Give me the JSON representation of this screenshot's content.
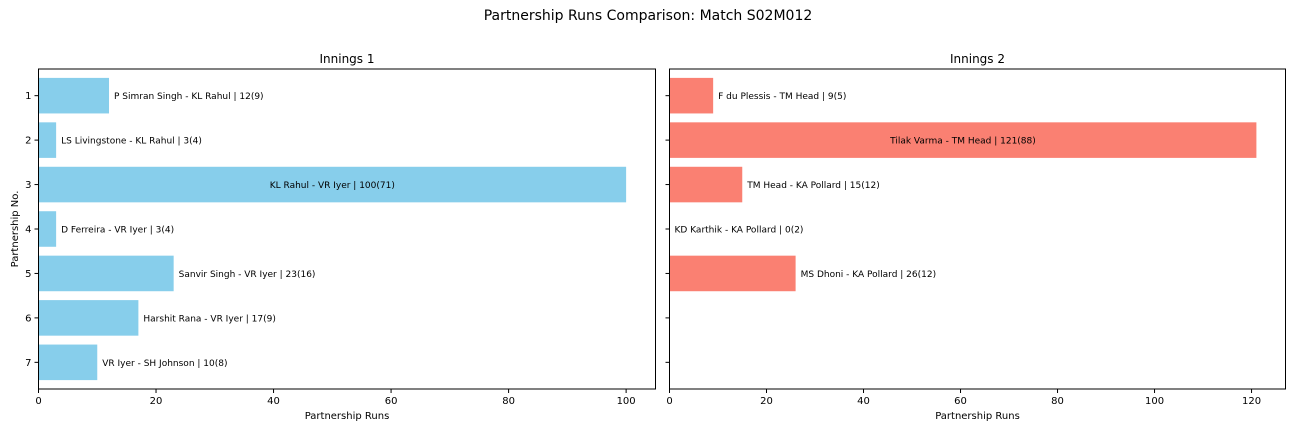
{
  "figure": {
    "title": "Partnership Runs Comparison: Match S02M012"
  },
  "chart_data": [
    {
      "type": "bar",
      "orientation": "horizontal",
      "title": "Innings 1",
      "xlabel": "Partnership Runs",
      "ylabel": "Partnership No.",
      "xlim": [
        0,
        105
      ],
      "xticks": [
        0,
        20,
        40,
        60,
        80,
        100
      ],
      "categories": [
        "1",
        "2",
        "3",
        "4",
        "5",
        "6",
        "7"
      ],
      "values": [
        12,
        3,
        100,
        3,
        23,
        17,
        10
      ],
      "labels": [
        "P Simran Singh - KL Rahul | 12(9)",
        "LS Livingstone - KL Rahul | 3(4)",
        "KL Rahul - VR Iyer | 100(71)",
        "D Ferreira - VR Iyer | 3(4)",
        "Sanvir Singh - VR Iyer | 23(16)",
        "Harshit Rana - VR Iyer | 17(9)",
        "VR Iyer - SH Johnson | 10(8)"
      ],
      "color": "#87CEEB",
      "grid": false
    },
    {
      "type": "bar",
      "orientation": "horizontal",
      "title": "Innings 2",
      "xlabel": "Partnership Runs",
      "ylabel": "",
      "xlim": [
        0,
        127
      ],
      "xticks": [
        0,
        20,
        40,
        60,
        80,
        100,
        120
      ],
      "categories": [
        "1",
        "2",
        "3",
        "4",
        "5",
        "6",
        "7"
      ],
      "values": [
        9,
        121,
        15,
        0,
        26
      ],
      "labels": [
        "F du Plessis - TM Head | 9(5)",
        "Tilak Varma - TM Head | 121(88)",
        "TM Head - KA Pollard | 15(12)",
        "KD Karthik - KA Pollard | 0(2)",
        "MS Dhoni - KA Pollard | 26(12)"
      ],
      "color": "#FA8072",
      "grid": false
    }
  ]
}
